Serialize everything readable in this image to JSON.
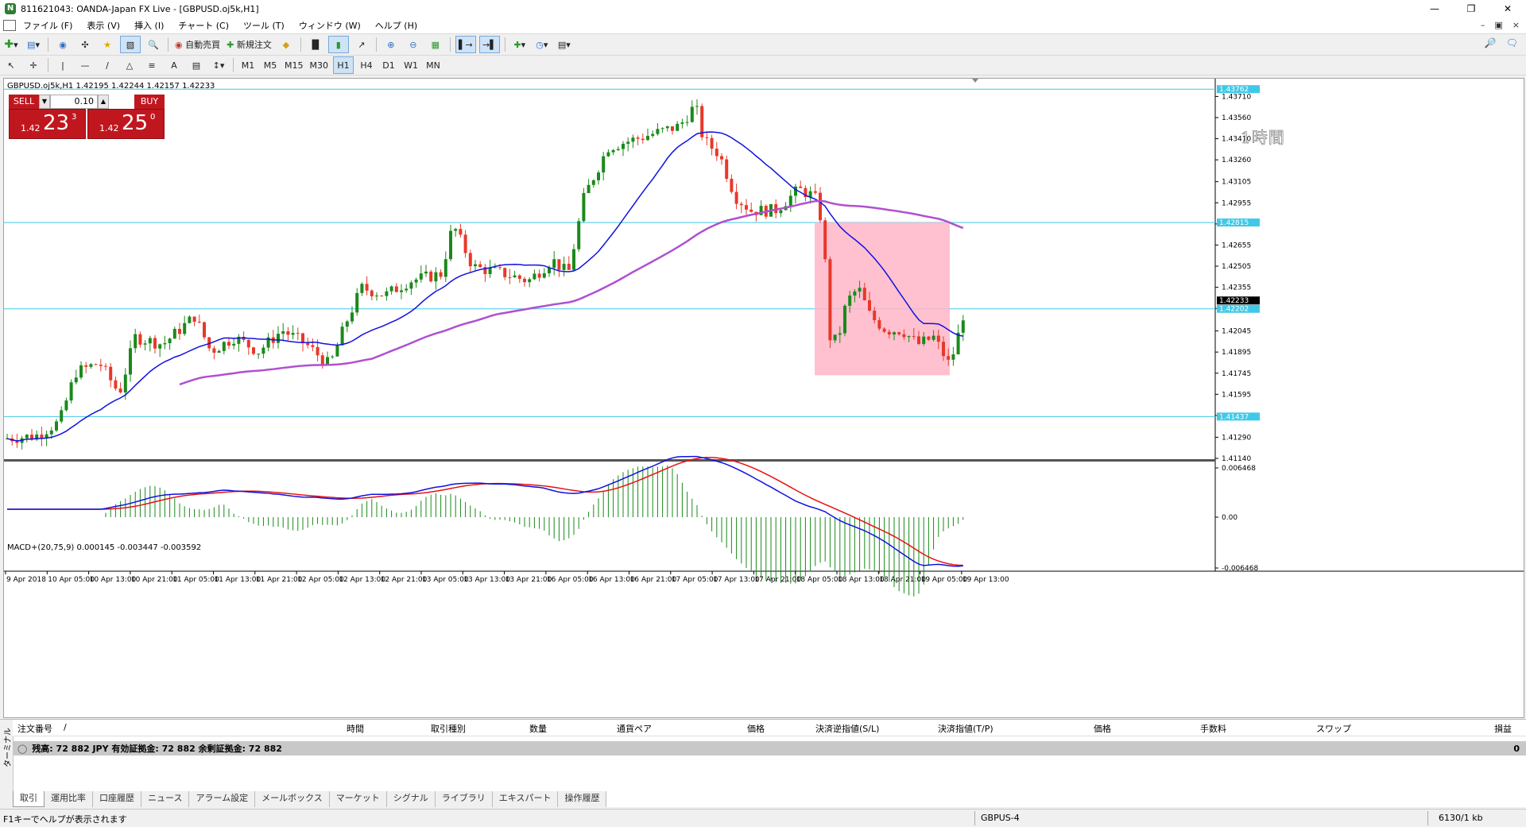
{
  "window": {
    "title": "811621043: OANDA-Japan FX Live - [GBPUSD.oj5k,H1]"
  },
  "menu": [
    "ファイル (F)",
    "表示 (V)",
    "挿入 (I)",
    "チャート (C)",
    "ツール (T)",
    "ウィンドウ (W)",
    "ヘルプ (H)"
  ],
  "toolbar": {
    "auto_trade": "自動売買",
    "new_order": "新規注文"
  },
  "timeframes": [
    "M1",
    "M5",
    "M15",
    "M30",
    "H1",
    "H4",
    "D1",
    "W1",
    "MN"
  ],
  "active_timeframe": "H1",
  "chart": {
    "symbol_line": "GBPUSD.oj5k,H1  1.42195 1.42244 1.42157 1.42233",
    "label_1h": "1時間",
    "macd_line": "MACD+(20,75,9) 0.000145 -0.003447 -0.003592",
    "one_click": {
      "sell": "SELL",
      "buy": "BUY",
      "volume": "0.10",
      "sell_small": "1.42",
      "sell_big": "23",
      "sell_sup": "3",
      "buy_small": "1.42",
      "buy_big": "25",
      "buy_sup": "0"
    }
  },
  "chart_data": {
    "type": "candlestick",
    "price_axis": [
      "1.43710",
      "1.43560",
      "1.43410",
      "1.43260",
      "1.43105",
      "1.42955",
      "1.42805",
      "1.42655",
      "1.42505",
      "1.42355",
      "1.42205",
      "1.42045",
      "1.41895",
      "1.41745",
      "1.41595",
      "1.41445",
      "1.41290",
      "1.41140"
    ],
    "price_range": [
      1.4114,
      1.4378
    ],
    "highlighted_levels": [
      "1.43762",
      "1.42815",
      "1.42202",
      "1.41437"
    ],
    "current_price": "1.42233",
    "macd_axis": [
      "0.006468",
      "0.00",
      "-0.006468"
    ],
    "time_axis": [
      "9 Apr 2018",
      "10 Apr 05:00",
      "10 Apr 13:00",
      "10 Apr 21:00",
      "11 Apr 05:00",
      "11 Apr 13:00",
      "11 Apr 21:00",
      "12 Apr 05:00",
      "12 Apr 13:00",
      "12 Apr 21:00",
      "13 Apr 05:00",
      "13 Apr 13:00",
      "13 Apr 21:00",
      "16 Apr 05:00",
      "16 Apr 13:00",
      "16 Apr 21:00",
      "17 Apr 05:00",
      "17 Apr 13:00",
      "17 Apr 21:00",
      "18 Apr 05:00",
      "18 Apr 13:00",
      "18 Apr 21:00",
      "19 Apr 05:00",
      "19 Apr 13:00"
    ],
    "colors": {
      "up": "#1a8a1a",
      "down": "#e8382a",
      "ma_fast": "#1010e0",
      "ma_slow": "#b050d0",
      "level": "#40c8e8",
      "rect": "#ffb6c8",
      "macd": "#1010e0",
      "signal": "#e81010",
      "hist": "#1a8a1a"
    }
  },
  "terminal": {
    "side_label": "ターミナル",
    "columns": [
      "注文番号",
      "/",
      "時間",
      "取引種別",
      "数量",
      "通貨ペア",
      "価格",
      "決済逆指値(S/L)",
      "決済指値(T/P)",
      "価格",
      "手数料",
      "スワップ",
      "損益"
    ],
    "balance": "残高: 72 882 JPY  有効証拠金: 72 882  余剰証拠金: 72 882",
    "profit": "0",
    "tabs": [
      "取引",
      "運用比率",
      "口座履歴",
      "ニュース",
      "アラーム設定",
      "メールボックス",
      "マーケット",
      "シグナル",
      "ライブラリ",
      "エキスパート",
      "操作履歴"
    ]
  },
  "status": {
    "help": "F1キーでヘルプが表示されます",
    "profile": "GBPUS-4",
    "traffic": "6130/1 kb"
  }
}
